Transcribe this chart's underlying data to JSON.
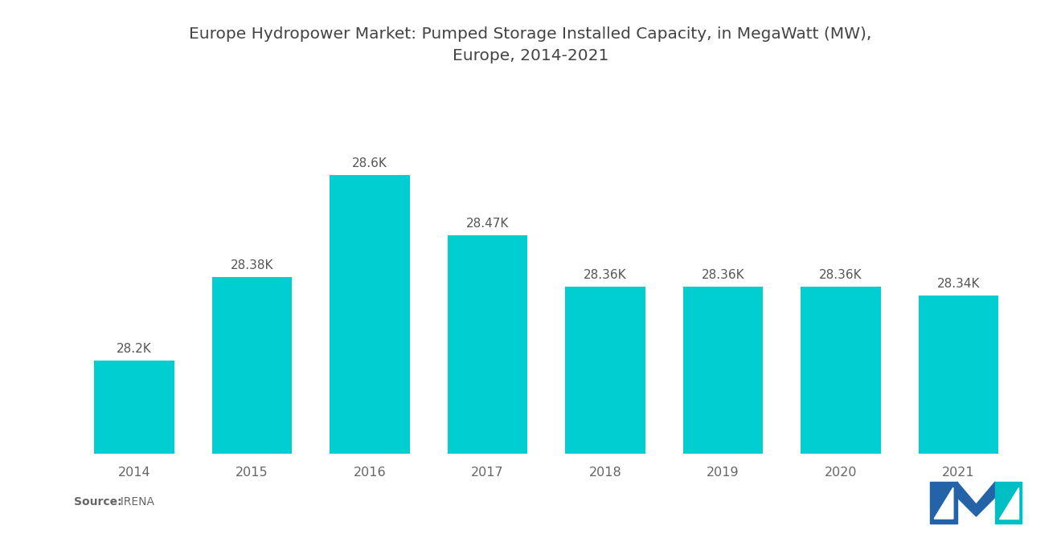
{
  "title": "Europe Hydropower Market: Pumped Storage Installed Capacity, in MegaWatt (MW),\nEurope, 2014-2021",
  "years": [
    "2014",
    "2015",
    "2016",
    "2017",
    "2018",
    "2019",
    "2020",
    "2021"
  ],
  "values": [
    28200,
    28380,
    28600,
    28470,
    28360,
    28360,
    28360,
    28340
  ],
  "labels": [
    "28.2K",
    "28.38K",
    "28.6K",
    "28.47K",
    "28.36K",
    "28.36K",
    "28.36K",
    "28.34K"
  ],
  "bar_color": "#00CED1",
  "background_color": "#ffffff",
  "title_fontsize": 14.5,
  "label_fontsize": 11,
  "tick_fontsize": 11.5,
  "source_bold": "Source:",
  "source_normal": "  IRENA",
  "ylim_min": 28000,
  "ylim_max": 28700,
  "logo_blue": "#2563A8",
  "logo_teal": "#00BFC4"
}
